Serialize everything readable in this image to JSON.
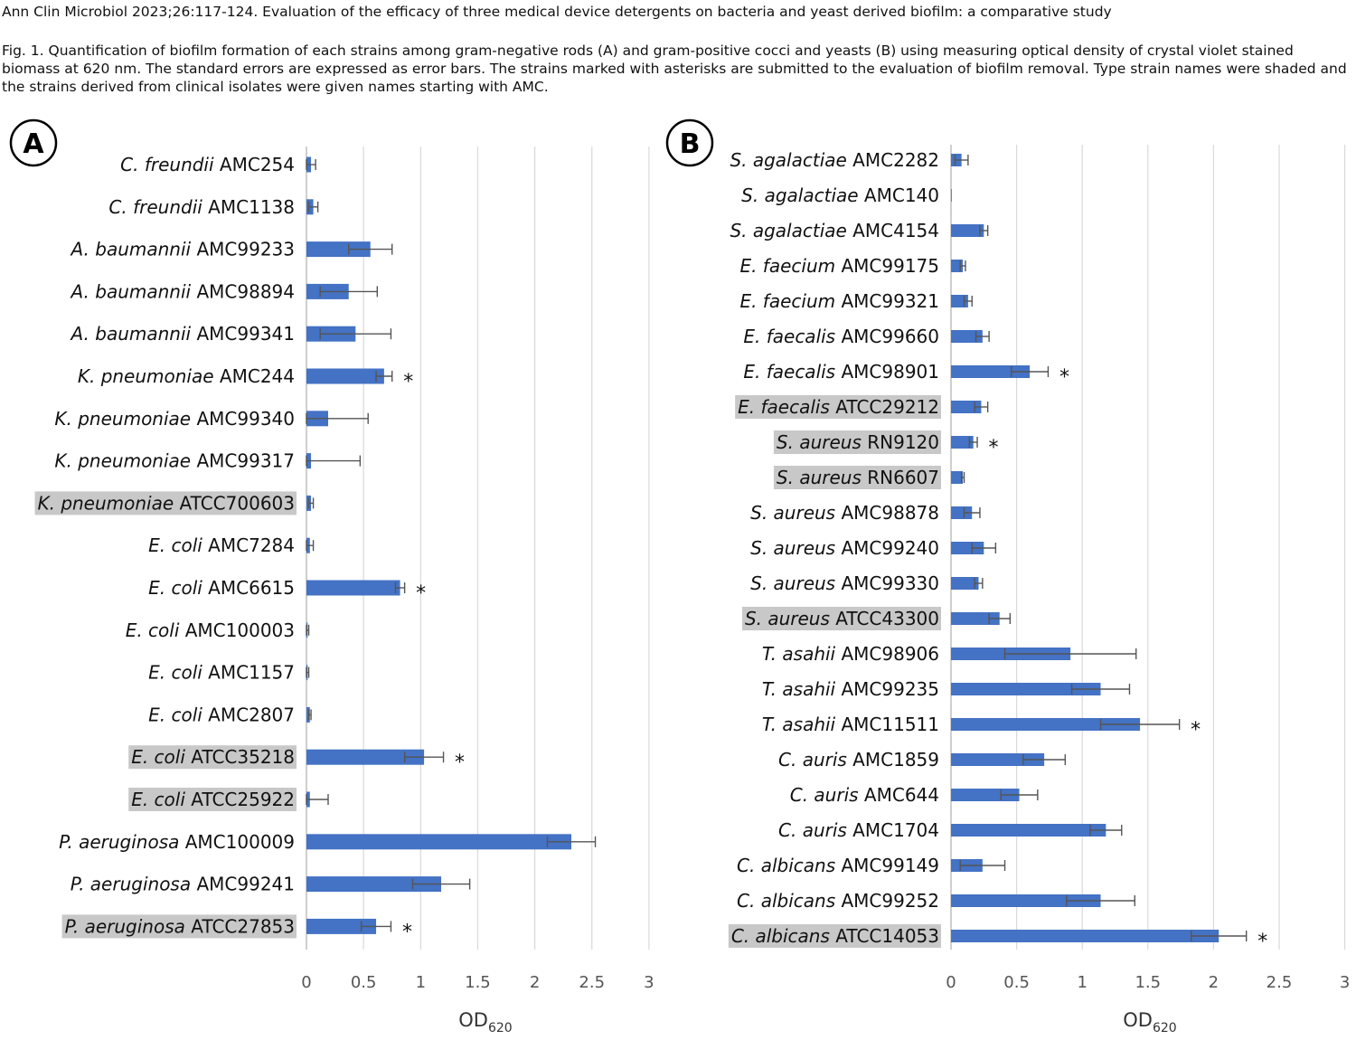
{
  "header": {
    "citation": "Ann Clin Microbiol 2023;26:117-124. Evaluation of the efficacy of three medical device detergents on bacteria and yeast derived biofilm: a comparative study",
    "caption": "Fig. 1. Quantification of biofilm formation of each strains among gram-negative rods (A) and gram-positive cocci and yeasts (B) using measuring optical density of crystal violet stained biomass at 620 nm. The standard errors are expressed as error bars. The strains marked with asterisks are submitted to the evaluation of biofilm removal. Type strain names were shaded and the strains derived from clinical isolates were given names starting with AMC."
  },
  "colors": {
    "bar": "#4472C4",
    "shade": "#C8C8C8",
    "grid": "#D9D9D9",
    "axis": "#BFBFBF",
    "error": "#555555"
  },
  "chart_data": [
    {
      "type": "bar",
      "orientation": "horizontal",
      "panel": "A",
      "xlabel_main": "OD",
      "xlabel_sub": "620",
      "xlim": [
        0,
        3
      ],
      "xticks": [
        0,
        0.5,
        1,
        1.5,
        2,
        2.5,
        3
      ],
      "tick_labels": [
        "0",
        "0.5",
        "1",
        "1.5",
        "2",
        "2.5",
        "3"
      ],
      "grid": true,
      "categories": [
        {
          "species": "C. freundii",
          "strain": "AMC254",
          "value": 0.04,
          "error": 0.04,
          "shaded": false,
          "asterisk": false
        },
        {
          "species": "C. freundii",
          "strain": "AMC1138",
          "value": 0.06,
          "error": 0.04,
          "shaded": false,
          "asterisk": false
        },
        {
          "species": "A. baumannii",
          "strain": "AMC99233",
          "value": 0.56,
          "error": 0.19,
          "shaded": false,
          "asterisk": false
        },
        {
          "species": "A. baumannii",
          "strain": "AMC98894",
          "value": 0.37,
          "error": 0.25,
          "shaded": false,
          "asterisk": false
        },
        {
          "species": "A. baumannii",
          "strain": "AMC99341",
          "value": 0.43,
          "error": 0.31,
          "shaded": false,
          "asterisk": false
        },
        {
          "species": "K. pneumoniae",
          "strain": "AMC244",
          "value": 0.68,
          "error": 0.07,
          "shaded": false,
          "asterisk": true
        },
        {
          "species": "K. pneumoniae",
          "strain": "AMC99340",
          "value": 0.19,
          "error": 0.35,
          "shaded": false,
          "asterisk": false
        },
        {
          "species": "K. pneumoniae",
          "strain": "AMC99317",
          "value": 0.04,
          "error": 0.43,
          "shaded": false,
          "asterisk": false
        },
        {
          "species": "K. pneumoniae",
          "strain": "ATCC700603",
          "value": 0.04,
          "error": 0.02,
          "shaded": true,
          "asterisk": false
        },
        {
          "species": "E. coli",
          "strain": "AMC7284",
          "value": 0.03,
          "error": 0.03,
          "shaded": false,
          "asterisk": false
        },
        {
          "species": "E. coli",
          "strain": "AMC6615",
          "value": 0.82,
          "error": 0.04,
          "shaded": false,
          "asterisk": true
        },
        {
          "species": "E. coli",
          "strain": "AMC100003",
          "value": 0.01,
          "error": 0.01,
          "shaded": false,
          "asterisk": false
        },
        {
          "species": "E. coli",
          "strain": "AMC1157",
          "value": 0.01,
          "error": 0.01,
          "shaded": false,
          "asterisk": false
        },
        {
          "species": "E. coli",
          "strain": "AMC2807",
          "value": 0.03,
          "error": 0.01,
          "shaded": false,
          "asterisk": false
        },
        {
          "species": "E. coli",
          "strain": "ATCC35218",
          "value": 1.03,
          "error": 0.17,
          "shaded": true,
          "asterisk": true
        },
        {
          "species": "E. coli",
          "strain": "ATCC25922",
          "value": 0.03,
          "error": 0.16,
          "shaded": true,
          "asterisk": false
        },
        {
          "species": "P. aeruginosa",
          "strain": "AMC100009",
          "value": 2.32,
          "error": 0.21,
          "shaded": false,
          "asterisk": false
        },
        {
          "species": "P. aeruginosa",
          "strain": "AMC99241",
          "value": 1.18,
          "error": 0.25,
          "shaded": false,
          "asterisk": false
        },
        {
          "species": "P. aeruginosa",
          "strain": "ATCC27853",
          "value": 0.61,
          "error": 0.13,
          "shaded": true,
          "asterisk": true
        }
      ]
    },
    {
      "type": "bar",
      "orientation": "horizontal",
      "panel": "B",
      "xlabel_main": "OD",
      "xlabel_sub": "620",
      "xlim": [
        0,
        3
      ],
      "xticks": [
        0,
        0.5,
        1,
        1.5,
        2,
        2.5,
        3
      ],
      "tick_labels": [
        "0",
        "0.5",
        "1",
        "1.5",
        "2",
        "2.5",
        "3"
      ],
      "grid": true,
      "categories": [
        {
          "species": "S. agalactiae",
          "strain": "AMC2282",
          "value": 0.08,
          "error": 0.05,
          "shaded": false,
          "asterisk": false
        },
        {
          "species": "S. agalactiae",
          "strain": "AMC140",
          "value": 0.005,
          "error": 0.0,
          "shaded": false,
          "asterisk": false
        },
        {
          "species": "S. agalactiae",
          "strain": "AMC4154",
          "value": 0.25,
          "error": 0.03,
          "shaded": false,
          "asterisk": false
        },
        {
          "species": "E. faecium",
          "strain": "AMC99175",
          "value": 0.09,
          "error": 0.02,
          "shaded": false,
          "asterisk": false
        },
        {
          "species": "E. faecium",
          "strain": "AMC99321",
          "value": 0.13,
          "error": 0.03,
          "shaded": false,
          "asterisk": false
        },
        {
          "species": "E. faecalis",
          "strain": "AMC99660",
          "value": 0.24,
          "error": 0.05,
          "shaded": false,
          "asterisk": false
        },
        {
          "species": "E. faecalis",
          "strain": "AMC98901",
          "value": 0.6,
          "error": 0.14,
          "shaded": false,
          "asterisk": true
        },
        {
          "species": "E. faecalis",
          "strain": "ATCC29212",
          "value": 0.23,
          "error": 0.05,
          "shaded": true,
          "asterisk": false
        },
        {
          "species": "S. aureus",
          "strain": "RN9120",
          "value": 0.17,
          "error": 0.03,
          "shaded": true,
          "asterisk": true
        },
        {
          "species": "S. aureus",
          "strain": "RN6607",
          "value": 0.09,
          "error": 0.01,
          "shaded": true,
          "asterisk": false
        },
        {
          "species": "S. aureus",
          "strain": "AMC98878",
          "value": 0.16,
          "error": 0.06,
          "shaded": false,
          "asterisk": false
        },
        {
          "species": "S. aureus",
          "strain": "AMC99240",
          "value": 0.25,
          "error": 0.09,
          "shaded": false,
          "asterisk": false
        },
        {
          "species": "S. aureus",
          "strain": "AMC99330",
          "value": 0.21,
          "error": 0.03,
          "shaded": false,
          "asterisk": false
        },
        {
          "species": "S. aureus",
          "strain": "ATCC43300",
          "value": 0.37,
          "error": 0.08,
          "shaded": true,
          "asterisk": false
        },
        {
          "species": "T. asahii",
          "strain": "AMC98906",
          "value": 0.91,
          "error": 0.5,
          "shaded": false,
          "asterisk": false
        },
        {
          "species": "T. asahii",
          "strain": "AMC99235",
          "value": 1.14,
          "error": 0.22,
          "shaded": false,
          "asterisk": false
        },
        {
          "species": "T. asahii",
          "strain": "AMC11511",
          "value": 1.44,
          "error": 0.3,
          "shaded": false,
          "asterisk": true
        },
        {
          "species": "C. auris",
          "strain": "AMC1859",
          "value": 0.71,
          "error": 0.16,
          "shaded": false,
          "asterisk": false
        },
        {
          "species": "C. auris",
          "strain": "AMC644",
          "value": 0.52,
          "error": 0.14,
          "shaded": false,
          "asterisk": false
        },
        {
          "species": "C. auris",
          "strain": "AMC1704",
          "value": 1.18,
          "error": 0.12,
          "shaded": false,
          "asterisk": false
        },
        {
          "species": "C. albicans",
          "strain": "AMC99149",
          "value": 0.24,
          "error": 0.17,
          "shaded": false,
          "asterisk": false
        },
        {
          "species": "C. albicans",
          "strain": "AMC99252",
          "value": 1.14,
          "error": 0.26,
          "shaded": false,
          "asterisk": false
        },
        {
          "species": "C. albicans",
          "strain": "ATCC14053",
          "value": 2.04,
          "error": 0.21,
          "shaded": true,
          "asterisk": true
        }
      ]
    }
  ]
}
